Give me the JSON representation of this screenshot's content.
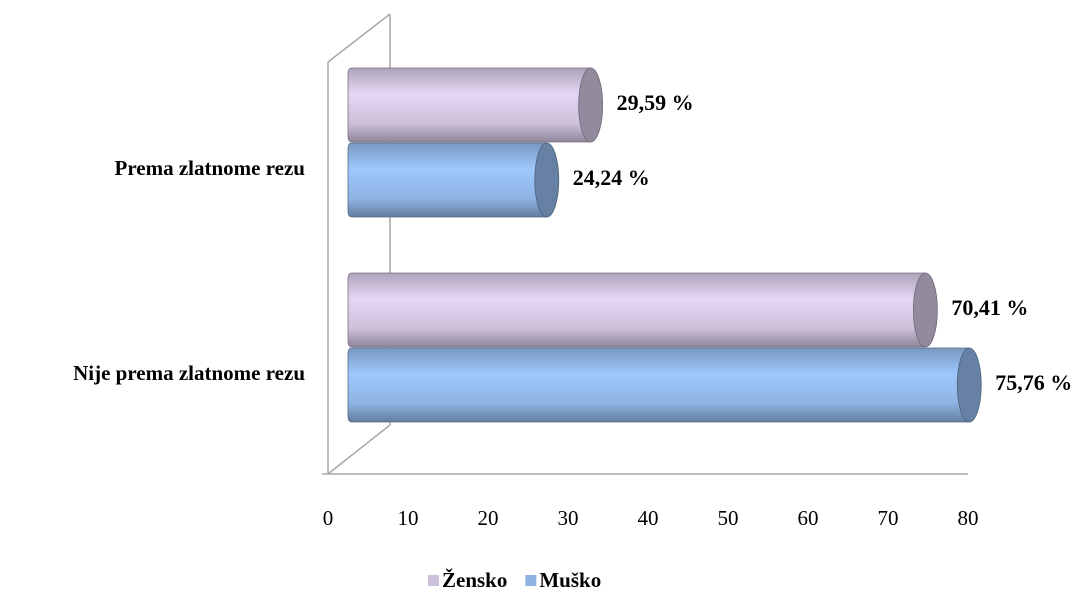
{
  "chart_data": {
    "type": "bar",
    "orientation": "horizontal",
    "categories": [
      "Prema zlatnome rezu",
      "Nije prema zlatnome rezu"
    ],
    "series": [
      {
        "name": "Žensko",
        "color": "#ccc0da",
        "values": [
          29.59,
          70.41
        ],
        "value_labels": [
          "29,59 %",
          "70,41 %"
        ]
      },
      {
        "name": "Muško",
        "color": "#8db3e2",
        "values": [
          24.24,
          75.76
        ],
        "value_labels": [
          "24,24 %",
          "75,76 %"
        ]
      }
    ],
    "xlim": [
      0,
      80
    ],
    "xticks": [
      0,
      10,
      20,
      30,
      40,
      50,
      60,
      70,
      80
    ],
    "legend": "bottom",
    "grid": false
  }
}
